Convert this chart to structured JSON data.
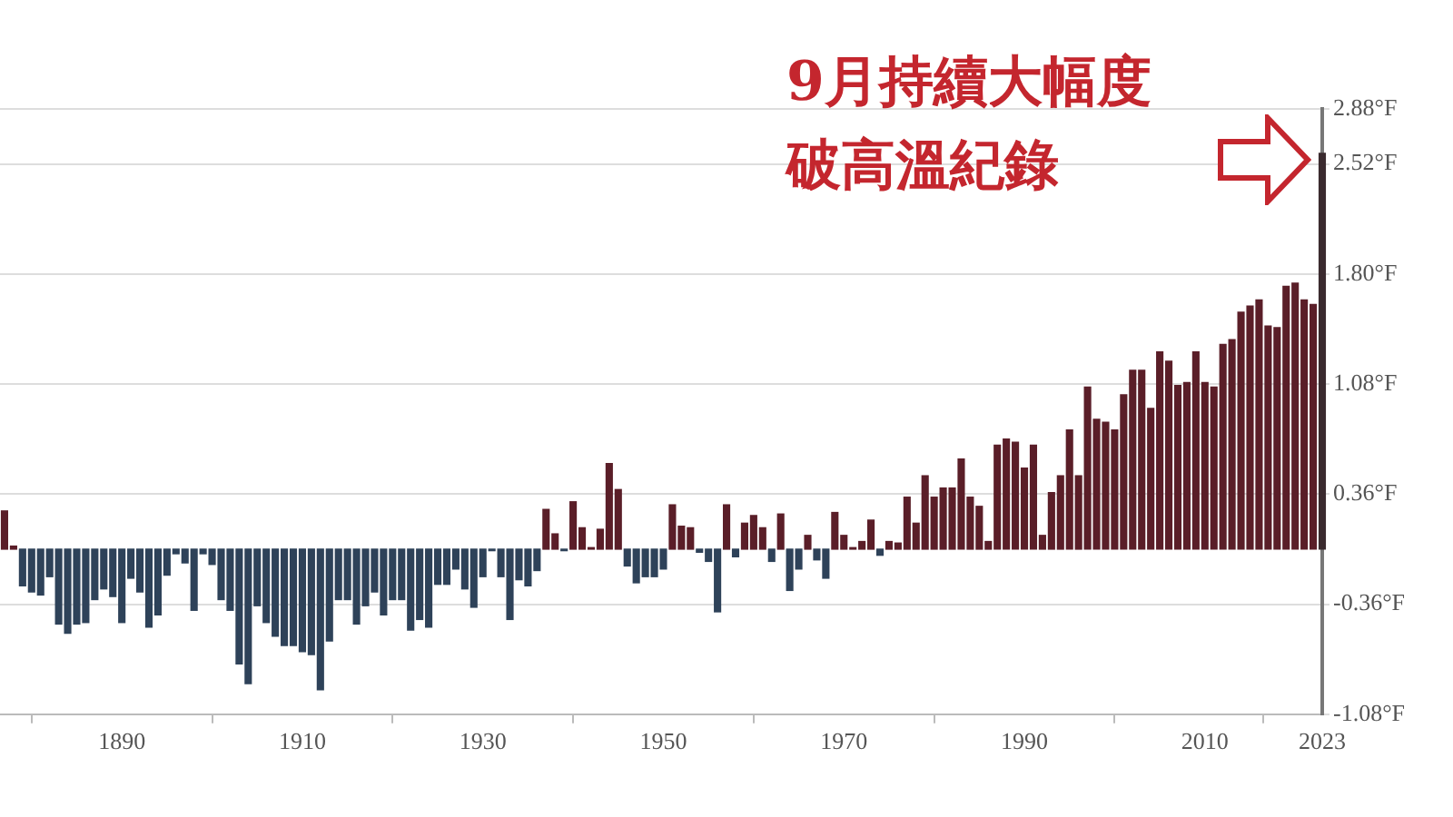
{
  "chart_data": {
    "type": "bar",
    "x": [
      1877,
      1878,
      1879,
      1880,
      1881,
      1882,
      1883,
      1884,
      1885,
      1886,
      1887,
      1888,
      1889,
      1890,
      1891,
      1892,
      1893,
      1894,
      1895,
      1896,
      1897,
      1898,
      1899,
      1900,
      1901,
      1902,
      1903,
      1904,
      1905,
      1906,
      1907,
      1908,
      1909,
      1910,
      1911,
      1912,
      1913,
      1914,
      1915,
      1916,
      1917,
      1918,
      1919,
      1920,
      1921,
      1922,
      1923,
      1924,
      1925,
      1926,
      1927,
      1928,
      1929,
      1930,
      1931,
      1932,
      1933,
      1934,
      1935,
      1936,
      1937,
      1938,
      1939,
      1940,
      1941,
      1942,
      1943,
      1944,
      1945,
      1946,
      1947,
      1948,
      1949,
      1950,
      1951,
      1952,
      1953,
      1954,
      1955,
      1956,
      1957,
      1958,
      1959,
      1960,
      1961,
      1962,
      1963,
      1964,
      1965,
      1966,
      1967,
      1968,
      1969,
      1970,
      1971,
      1972,
      1973,
      1974,
      1975,
      1976,
      1977,
      1978,
      1979,
      1980,
      1981,
      1982,
      1983,
      1984,
      1985,
      1986,
      1987,
      1988,
      1989,
      1990,
      1991,
      1992,
      1993,
      1994,
      1995,
      1996,
      1997,
      1998,
      1999,
      2000,
      2001,
      2002,
      2003,
      2004,
      2005,
      2006,
      2007,
      2008,
      2009,
      2010,
      2011,
      2012,
      2013,
      2014,
      2015,
      2016,
      2017,
      2018,
      2019,
      2020,
      2021,
      2022,
      2023
    ],
    "values": [
      0.25,
      0.02,
      -0.24,
      -0.28,
      -0.3,
      -0.18,
      -0.49,
      -0.55,
      -0.49,
      -0.48,
      -0.33,
      -0.26,
      -0.31,
      -0.48,
      -0.19,
      -0.28,
      -0.51,
      -0.43,
      -0.17,
      -0.03,
      -0.09,
      -0.4,
      -0.03,
      -0.1,
      -0.33,
      -0.4,
      -0.75,
      -0.88,
      -0.37,
      -0.48,
      -0.57,
      -0.63,
      -0.63,
      -0.67,
      -0.69,
      -0.92,
      -0.6,
      -0.33,
      -0.33,
      -0.49,
      -0.37,
      -0.28,
      -0.43,
      -0.33,
      -0.33,
      -0.53,
      -0.46,
      -0.51,
      -0.23,
      -0.23,
      -0.13,
      -0.26,
      -0.38,
      -0.18,
      -0.01,
      -0.18,
      -0.46,
      -0.2,
      -0.24,
      -0.14,
      0.26,
      0.1,
      -0.01,
      0.31,
      0.14,
      0.01,
      0.13,
      0.56,
      0.39,
      -0.11,
      -0.22,
      -0.18,
      -0.18,
      -0.13,
      0.29,
      0.15,
      0.14,
      -0.02,
      -0.08,
      -0.41,
      0.29,
      -0.05,
      0.17,
      0.22,
      0.14,
      -0.08,
      0.23,
      -0.27,
      -0.13,
      0.09,
      -0.07,
      -0.19,
      0.24,
      0.09,
      0.01,
      0.05,
      0.19,
      -0.04,
      0.05,
      0.04,
      0.34,
      0.17,
      0.48,
      0.34,
      0.4,
      0.4,
      0.59,
      0.34,
      0.28,
      0.05,
      0.68,
      0.72,
      0.7,
      0.53,
      0.68,
      0.09,
      0.37,
      0.48,
      0.78,
      0.48,
      1.06,
      0.85,
      0.83,
      0.78,
      1.01,
      1.17,
      1.17,
      0.92,
      1.29,
      1.23,
      1.07,
      1.09,
      1.29,
      1.09,
      1.06,
      1.34,
      1.37,
      1.55,
      1.59,
      1.63,
      1.46,
      1.45,
      1.72,
      1.74,
      1.63,
      1.6,
      2.59
    ],
    "colors": [
      "#5a1e28",
      "#5a1e28",
      "#2e4259",
      "#2e4259",
      "#2e4259",
      "#2e4259",
      "#2e4259",
      "#2e4259",
      "#2e4259",
      "#2e4259",
      "#2e4259",
      "#2e4259",
      "#2e4259",
      "#2e4259",
      "#2e4259",
      "#2e4259",
      "#2e4259",
      "#2e4259",
      "#2e4259",
      "#2e4259",
      "#2e4259",
      "#2e4259",
      "#2e4259",
      "#2e4259",
      "#2e4259",
      "#2e4259",
      "#2e4259",
      "#2e4259",
      "#2e4259",
      "#2e4259",
      "#2e4259",
      "#2e4259",
      "#2e4259",
      "#2e4259",
      "#2e4259",
      "#2e4259",
      "#2e4259",
      "#2e4259",
      "#2e4259",
      "#2e4259",
      "#2e4259",
      "#2e4259",
      "#2e4259",
      "#2e4259",
      "#2e4259",
      "#2e4259",
      "#2e4259",
      "#2e4259",
      "#2e4259",
      "#2e4259",
      "#2e4259",
      "#2e4259",
      "#2e4259",
      "#2e4259",
      "#2e4259",
      "#2e4259",
      "#2e4259",
      "#2e4259",
      "#2e4259",
      "#2e4259",
      "#5a1e28",
      "#5a1e28",
      "#2e4259",
      "#5a1e28",
      "#5a1e28",
      "#5a1e28",
      "#5a1e28",
      "#5a1e28",
      "#5a1e28",
      "#2e4259",
      "#2e4259",
      "#2e4259",
      "#2e4259",
      "#2e4259",
      "#5a1e28",
      "#5a1e28",
      "#5a1e28",
      "#2e4259",
      "#2e4259",
      "#2e4259",
      "#5a1e28",
      "#2e4259",
      "#5a1e28",
      "#5a1e28",
      "#5a1e28",
      "#2e4259",
      "#5a1e28",
      "#2e4259",
      "#2e4259",
      "#5a1e28",
      "#2e4259",
      "#2e4259",
      "#5a1e28",
      "#5a1e28",
      "#5a1e28",
      "#5a1e28",
      "#5a1e28",
      "#2e4259",
      "#5a1e28",
      "#5a1e28",
      "#5a1e28",
      "#5a1e28",
      "#5a1e28",
      "#5a1e28",
      "#5a1e28",
      "#5a1e28",
      "#5a1e28",
      "#5a1e28",
      "#5a1e28",
      "#5a1e28",
      "#5a1e28",
      "#5a1e28",
      "#5a1e28",
      "#5a1e28",
      "#5a1e28",
      "#5a1e28",
      "#5a1e28",
      "#5a1e28",
      "#5a1e28",
      "#5a1e28",
      "#5a1e28",
      "#5a1e28",
      "#5a1e28",
      "#5a1e28",
      "#5a1e28",
      "#5a1e28",
      "#5a1e28",
      "#5a1e28",
      "#5a1e28",
      "#5a1e28",
      "#5a1e28",
      "#5a1e28",
      "#5a1e28",
      "#5a1e28",
      "#5a1e28",
      "#5a1e28",
      "#5a1e28",
      "#5a1e28",
      "#5a1e28",
      "#5a1e28",
      "#5a1e28",
      "#5a1e28",
      "#5a1e28",
      "#5a1e28",
      "#5a1e28",
      "#5a1e28",
      "#3a2a2e"
    ],
    "xlim": [
      1876.5,
      2023
    ],
    "xticks": [
      1890,
      1910,
      1930,
      1950,
      1970,
      1990,
      2010,
      2023
    ],
    "ylim": [
      -1.08,
      2.88
    ],
    "yticks": [
      {
        "value": -1.08,
        "label": "-1.08°F"
      },
      {
        "value": -0.36,
        "label": "-0.36°F"
      },
      {
        "value": 0.36,
        "label": "0.36°F"
      },
      {
        "value": 1.08,
        "label": "1.08°F"
      },
      {
        "value": 1.8,
        "label": "1.80°F"
      },
      {
        "value": 2.52,
        "label": "2.52°F"
      },
      {
        "value": 2.88,
        "label": "2.88°F"
      }
    ],
    "grid": "y",
    "annotations": [
      "9月持續大幅度破高溫紀錄"
    ]
  }
}
